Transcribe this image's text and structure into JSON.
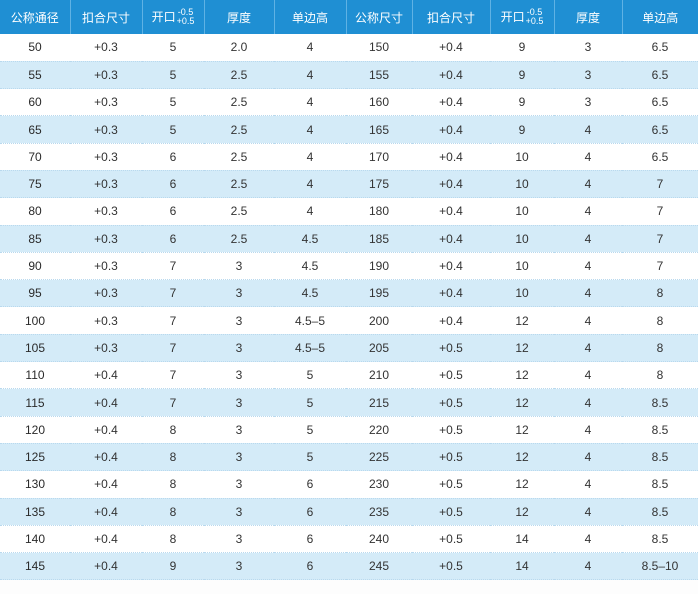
{
  "headers": [
    {
      "label": "公称通径"
    },
    {
      "label": "扣合尺寸"
    },
    {
      "label": "开口",
      "sup": "-0.5",
      "sub": "+0.5"
    },
    {
      "label": "厚度"
    },
    {
      "label": "单边高"
    },
    {
      "label": "公称尺寸"
    },
    {
      "label": "扣合尺寸"
    },
    {
      "label": "开口",
      "sup": "-0.5",
      "sub": "+0.5"
    },
    {
      "label": "厚度"
    },
    {
      "label": "单边高"
    }
  ],
  "rows": [
    [
      "50",
      "+0.3",
      "5",
      "2.0",
      "4",
      "150",
      "+0.4",
      "9",
      "3",
      "6.5"
    ],
    [
      "55",
      "+0.3",
      "5",
      "2.5",
      "4",
      "155",
      "+0.4",
      "9",
      "3",
      "6.5"
    ],
    [
      "60",
      "+0.3",
      "5",
      "2.5",
      "4",
      "160",
      "+0.4",
      "9",
      "3",
      "6.5"
    ],
    [
      "65",
      "+0.3",
      "5",
      "2.5",
      "4",
      "165",
      "+0.4",
      "9",
      "4",
      "6.5"
    ],
    [
      "70",
      "+0.3",
      "6",
      "2.5",
      "4",
      "170",
      "+0.4",
      "10",
      "4",
      "6.5"
    ],
    [
      "75",
      "+0.3",
      "6",
      "2.5",
      "4",
      "175",
      "+0.4",
      "10",
      "4",
      "7"
    ],
    [
      "80",
      "+0.3",
      "6",
      "2.5",
      "4",
      "180",
      "+0.4",
      "10",
      "4",
      "7"
    ],
    [
      "85",
      "+0.3",
      "6",
      "2.5",
      "4.5",
      "185",
      "+0.4",
      "10",
      "4",
      "7"
    ],
    [
      "90",
      "+0.3",
      "7",
      "3",
      "4.5",
      "190",
      "+0.4",
      "10",
      "4",
      "7"
    ],
    [
      "95",
      "+0.3",
      "7",
      "3",
      "4.5",
      "195",
      "+0.4",
      "10",
      "4",
      "8"
    ],
    [
      "100",
      "+0.3",
      "7",
      "3",
      "4.5–5",
      "200",
      "+0.4",
      "12",
      "4",
      "8"
    ],
    [
      "105",
      "+0.3",
      "7",
      "3",
      "4.5–5",
      "205",
      "+0.5",
      "12",
      "4",
      "8"
    ],
    [
      "110",
      "+0.4",
      "7",
      "3",
      "5",
      "210",
      "+0.5",
      "12",
      "4",
      "8"
    ],
    [
      "115",
      "+0.4",
      "7",
      "3",
      "5",
      "215",
      "+0.5",
      "12",
      "4",
      "8.5"
    ],
    [
      "120",
      "+0.4",
      "8",
      "3",
      "5",
      "220",
      "+0.5",
      "12",
      "4",
      "8.5"
    ],
    [
      "125",
      "+0.4",
      "8",
      "3",
      "5",
      "225",
      "+0.5",
      "12",
      "4",
      "8.5"
    ],
    [
      "130",
      "+0.4",
      "8",
      "3",
      "6",
      "230",
      "+0.5",
      "12",
      "4",
      "8.5"
    ],
    [
      "135",
      "+0.4",
      "8",
      "3",
      "6",
      "235",
      "+0.5",
      "12",
      "4",
      "8.5"
    ],
    [
      "140",
      "+0.4",
      "8",
      "3",
      "6",
      "240",
      "+0.5",
      "14",
      "4",
      "8.5"
    ],
    [
      "145",
      "+0.4",
      "9",
      "3",
      "6",
      "245",
      "+0.5",
      "14",
      "4",
      "8.5–10"
    ]
  ],
  "colors": {
    "header_bg": "#1f8fd3",
    "stripe_bg": "#d4ebf8"
  }
}
